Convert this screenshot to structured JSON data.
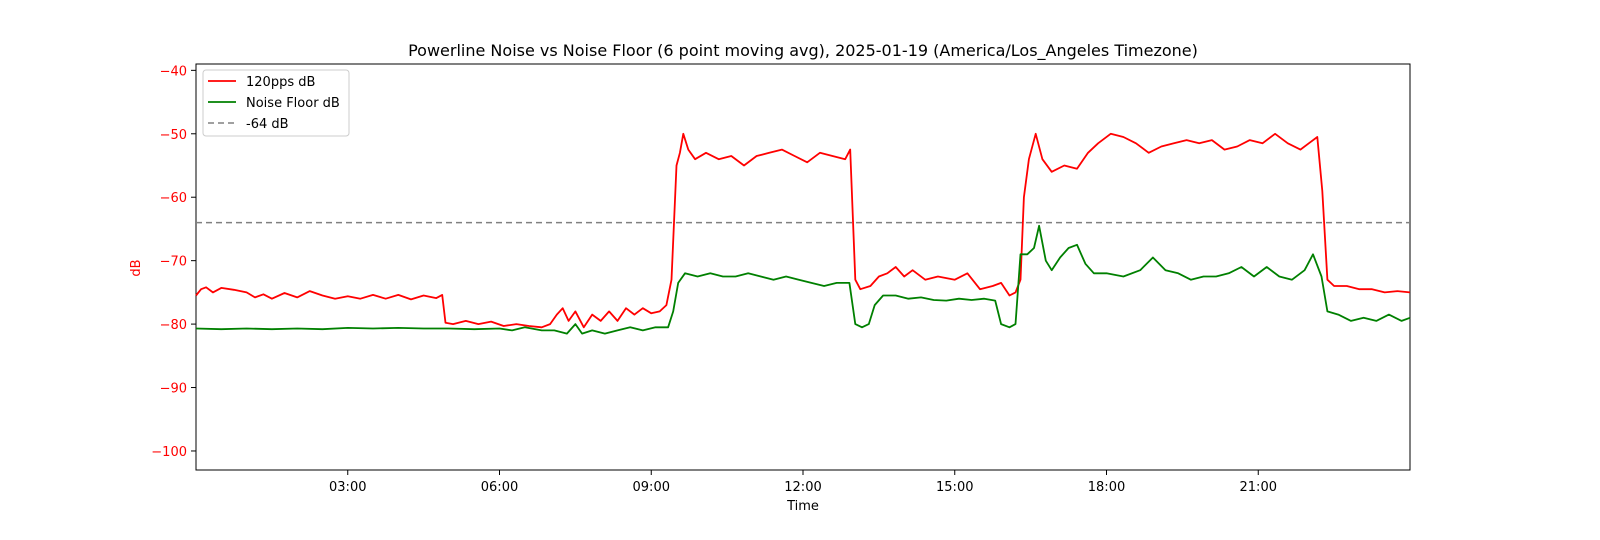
{
  "chart_data": {
    "type": "line",
    "title": "Powerline Noise vs Noise Floor (6 point moving avg), 2025-01-19 (America/Los_Angeles Timezone)",
    "xlabel": "Time",
    "ylabel": "dB",
    "xlim": [
      "00:00",
      "24:00"
    ],
    "ylim": [
      -103,
      -39
    ],
    "x_ticks": [
      "03:00",
      "06:00",
      "09:00",
      "12:00",
      "15:00",
      "18:00",
      "21:00"
    ],
    "y_ticks": [
      -40,
      -50,
      -60,
      -70,
      -80,
      -90,
      -100
    ],
    "grid": false,
    "legend_position": "top-left",
    "colors": {
      "axis_label": "#ff0000",
      "ytick": "#ff0000"
    },
    "series": [
      {
        "name": "120pps dB",
        "color": "#ff0000",
        "style": "solid",
        "points": [
          [
            "00:00",
            -75.5
          ],
          [
            "00:06",
            -74.5
          ],
          [
            "00:12",
            -74.2
          ],
          [
            "00:20",
            -75.0
          ],
          [
            "00:30",
            -74.3
          ],
          [
            "00:45",
            -74.6
          ],
          [
            "01:00",
            -75.0
          ],
          [
            "01:10",
            -75.8
          ],
          [
            "01:20",
            -75.3
          ],
          [
            "01:30",
            -76.0
          ],
          [
            "01:45",
            -75.1
          ],
          [
            "02:00",
            -75.8
          ],
          [
            "02:15",
            -74.8
          ],
          [
            "02:30",
            -75.5
          ],
          [
            "02:45",
            -76.0
          ],
          [
            "03:00",
            -75.6
          ],
          [
            "03:15",
            -76.0
          ],
          [
            "03:30",
            -75.4
          ],
          [
            "03:45",
            -76.0
          ],
          [
            "04:00",
            -75.4
          ],
          [
            "04:15",
            -76.1
          ],
          [
            "04:30",
            -75.5
          ],
          [
            "04:45",
            -75.9
          ],
          [
            "04:52",
            -75.4
          ],
          [
            "04:56",
            -79.8
          ],
          [
            "05:05",
            -80.0
          ],
          [
            "05:20",
            -79.5
          ],
          [
            "05:35",
            -80.0
          ],
          [
            "05:50",
            -79.6
          ],
          [
            "06:05",
            -80.3
          ],
          [
            "06:20",
            -80.0
          ],
          [
            "06:35",
            -80.3
          ],
          [
            "06:50",
            -80.5
          ],
          [
            "07:00",
            -80.0
          ],
          [
            "07:08",
            -78.5
          ],
          [
            "07:15",
            -77.5
          ],
          [
            "07:22",
            -79.5
          ],
          [
            "07:30",
            -78.0
          ],
          [
            "07:40",
            -80.5
          ],
          [
            "07:50",
            -78.5
          ],
          [
            "08:00",
            -79.5
          ],
          [
            "08:10",
            -78.0
          ],
          [
            "08:20",
            -79.5
          ],
          [
            "08:30",
            -77.5
          ],
          [
            "08:40",
            -78.5
          ],
          [
            "08:50",
            -77.5
          ],
          [
            "09:00",
            -78.3
          ],
          [
            "09:10",
            -78.0
          ],
          [
            "09:18",
            -77.0
          ],
          [
            "09:24",
            -73.0
          ],
          [
            "09:30",
            -55.0
          ],
          [
            "09:34",
            -53.0
          ],
          [
            "09:38",
            -50.0
          ],
          [
            "09:44",
            -52.5
          ],
          [
            "09:52",
            -54.0
          ],
          [
            "10:05",
            -53.0
          ],
          [
            "10:20",
            -54.0
          ],
          [
            "10:35",
            -53.5
          ],
          [
            "10:50",
            -55.0
          ],
          [
            "11:05",
            -53.5
          ],
          [
            "11:20",
            -53.0
          ],
          [
            "11:35",
            -52.5
          ],
          [
            "11:50",
            -53.5
          ],
          [
            "12:05",
            -54.5
          ],
          [
            "12:20",
            -53.0
          ],
          [
            "12:35",
            -53.5
          ],
          [
            "12:50",
            -54.0
          ],
          [
            "12:56",
            -52.5
          ],
          [
            "13:02",
            -73.0
          ],
          [
            "13:08",
            -74.5
          ],
          [
            "13:20",
            -74.0
          ],
          [
            "13:30",
            -72.5
          ],
          [
            "13:40",
            -72.0
          ],
          [
            "13:50",
            -71.0
          ],
          [
            "14:00",
            -72.5
          ],
          [
            "14:10",
            -71.5
          ],
          [
            "14:25",
            -73.0
          ],
          [
            "14:40",
            -72.5
          ],
          [
            "15:00",
            -73.0
          ],
          [
            "15:15",
            -72.0
          ],
          [
            "15:30",
            -74.5
          ],
          [
            "15:45",
            -74.0
          ],
          [
            "15:55",
            -73.5
          ],
          [
            "16:05",
            -75.5
          ],
          [
            "16:12",
            -75.0
          ],
          [
            "16:18",
            -73.0
          ],
          [
            "16:22",
            -60.0
          ],
          [
            "16:28",
            -54.0
          ],
          [
            "16:36",
            -50.0
          ],
          [
            "16:44",
            -54.0
          ],
          [
            "16:55",
            -56.0
          ],
          [
            "17:10",
            -55.0
          ],
          [
            "17:25",
            -55.5
          ],
          [
            "17:38",
            -53.0
          ],
          [
            "17:50",
            -51.5
          ],
          [
            "18:05",
            -50.0
          ],
          [
            "18:20",
            -50.5
          ],
          [
            "18:35",
            -51.5
          ],
          [
            "18:50",
            -53.0
          ],
          [
            "19:05",
            -52.0
          ],
          [
            "19:20",
            -51.5
          ],
          [
            "19:35",
            -51.0
          ],
          [
            "19:50",
            -51.5
          ],
          [
            "20:05",
            -51.0
          ],
          [
            "20:20",
            -52.5
          ],
          [
            "20:35",
            -52.0
          ],
          [
            "20:50",
            -51.0
          ],
          [
            "21:05",
            -51.5
          ],
          [
            "21:20",
            -50.0
          ],
          [
            "21:35",
            -51.5
          ],
          [
            "21:50",
            -52.5
          ],
          [
            "22:00",
            -51.5
          ],
          [
            "22:10",
            -50.5
          ],
          [
            "22:16",
            -59.0
          ],
          [
            "22:22",
            -73.0
          ],
          [
            "22:30",
            -74.0
          ],
          [
            "22:45",
            -74.0
          ],
          [
            "23:00",
            -74.5
          ],
          [
            "23:15",
            -74.5
          ],
          [
            "23:30",
            -75.0
          ],
          [
            "23:45",
            -74.8
          ],
          [
            "24:00",
            -75.0
          ]
        ]
      },
      {
        "name": "Noise Floor dB",
        "color": "#008000",
        "style": "solid",
        "points": [
          [
            "00:00",
            -80.7
          ],
          [
            "00:30",
            -80.8
          ],
          [
            "01:00",
            -80.7
          ],
          [
            "01:30",
            -80.8
          ],
          [
            "02:00",
            -80.7
          ],
          [
            "02:30",
            -80.8
          ],
          [
            "03:00",
            -80.6
          ],
          [
            "03:30",
            -80.7
          ],
          [
            "04:00",
            -80.6
          ],
          [
            "04:30",
            -80.7
          ],
          [
            "05:00",
            -80.7
          ],
          [
            "05:30",
            -80.8
          ],
          [
            "06:00",
            -80.7
          ],
          [
            "06:15",
            -81.0
          ],
          [
            "06:30",
            -80.5
          ],
          [
            "06:50",
            -81.0
          ],
          [
            "07:05",
            -81.0
          ],
          [
            "07:20",
            -81.5
          ],
          [
            "07:30",
            -80.0
          ],
          [
            "07:38",
            -81.5
          ],
          [
            "07:50",
            -81.0
          ],
          [
            "08:05",
            -81.5
          ],
          [
            "08:20",
            -81.0
          ],
          [
            "08:35",
            -80.5
          ],
          [
            "08:50",
            -81.0
          ],
          [
            "09:05",
            -80.5
          ],
          [
            "09:20",
            -80.5
          ],
          [
            "09:26",
            -78.0
          ],
          [
            "09:32",
            -73.5
          ],
          [
            "09:40",
            -72.0
          ],
          [
            "09:55",
            -72.5
          ],
          [
            "10:10",
            -72.0
          ],
          [
            "10:25",
            -72.5
          ],
          [
            "10:40",
            -72.5
          ],
          [
            "10:55",
            -72.0
          ],
          [
            "11:10",
            -72.5
          ],
          [
            "11:25",
            -73.0
          ],
          [
            "11:40",
            -72.5
          ],
          [
            "11:55",
            -73.0
          ],
          [
            "12:10",
            -73.5
          ],
          [
            "12:25",
            -74.0
          ],
          [
            "12:40",
            -73.5
          ],
          [
            "12:55",
            -73.5
          ],
          [
            "13:02",
            -80.0
          ],
          [
            "13:10",
            -80.5
          ],
          [
            "13:18",
            -80.0
          ],
          [
            "13:25",
            -77.0
          ],
          [
            "13:35",
            -75.5
          ],
          [
            "13:50",
            -75.5
          ],
          [
            "14:05",
            -76.0
          ],
          [
            "14:20",
            -75.8
          ],
          [
            "14:35",
            -76.2
          ],
          [
            "14:50",
            -76.3
          ],
          [
            "15:05",
            -76.0
          ],
          [
            "15:20",
            -76.2
          ],
          [
            "15:35",
            -76.0
          ],
          [
            "15:48",
            -76.3
          ],
          [
            "15:55",
            -80.0
          ],
          [
            "16:05",
            -80.5
          ],
          [
            "16:12",
            -80.0
          ],
          [
            "16:18",
            -69.0
          ],
          [
            "16:26",
            -69.0
          ],
          [
            "16:34",
            -68.0
          ],
          [
            "16:40",
            -64.5
          ],
          [
            "16:48",
            -70.0
          ],
          [
            "16:55",
            -71.5
          ],
          [
            "17:05",
            -69.5
          ],
          [
            "17:15",
            -68.0
          ],
          [
            "17:25",
            -67.5
          ],
          [
            "17:35",
            -70.5
          ],
          [
            "17:45",
            -72.0
          ],
          [
            "18:00",
            -72.0
          ],
          [
            "18:20",
            -72.5
          ],
          [
            "18:40",
            -71.5
          ],
          [
            "18:55",
            -69.5
          ],
          [
            "19:10",
            -71.5
          ],
          [
            "19:25",
            -72.0
          ],
          [
            "19:40",
            -73.0
          ],
          [
            "19:55",
            -72.5
          ],
          [
            "20:10",
            -72.5
          ],
          [
            "20:25",
            -72.0
          ],
          [
            "20:40",
            -71.0
          ],
          [
            "20:55",
            -72.5
          ],
          [
            "21:10",
            -71.0
          ],
          [
            "21:25",
            -72.5
          ],
          [
            "21:40",
            -73.0
          ],
          [
            "21:55",
            -71.5
          ],
          [
            "22:05",
            -69.0
          ],
          [
            "22:15",
            -72.5
          ],
          [
            "22:22",
            -78.0
          ],
          [
            "22:35",
            -78.5
          ],
          [
            "22:50",
            -79.5
          ],
          [
            "23:05",
            -79.0
          ],
          [
            "23:20",
            -79.5
          ],
          [
            "23:35",
            -78.5
          ],
          [
            "23:50",
            -79.5
          ],
          [
            "24:00",
            -79.0
          ]
        ]
      },
      {
        "name": "-64 dB",
        "color": "#808080",
        "style": "dashed",
        "points": [
          [
            "00:00",
            -64
          ],
          [
            "24:00",
            -64
          ]
        ]
      }
    ]
  }
}
